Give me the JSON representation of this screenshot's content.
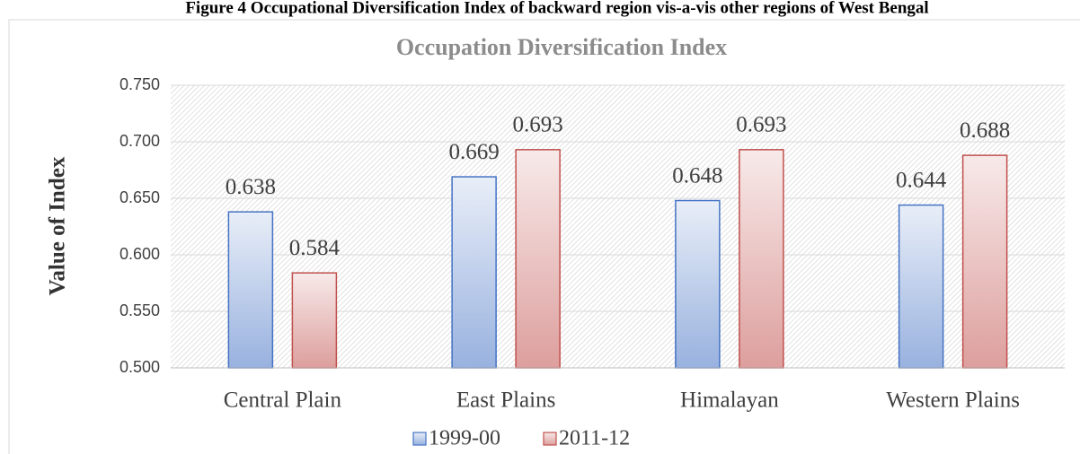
{
  "caption": "Figure 4 Occupational Diversification Index of backward region vis-a-vis other regions of West Bengal",
  "chart_data": {
    "type": "bar",
    "title": "Occupation Diversification Index",
    "y_label": "Value of Index",
    "categories": [
      "Central Plain",
      "East Plains",
      "Himalayan",
      "Western Plains"
    ],
    "series": [
      {
        "name": "1999-00",
        "color": "#4472c4",
        "values": [
          0.638,
          0.669,
          0.648,
          0.644
        ]
      },
      {
        "name": "2011-12",
        "color": "#c0504d",
        "values": [
          0.584,
          0.693,
          0.693,
          0.688
        ]
      }
    ],
    "ylim": [
      0.5,
      0.75
    ],
    "yticks": [
      {
        "value": 0.5,
        "label": "0.500"
      },
      {
        "value": 0.55,
        "label": "0.550"
      },
      {
        "value": 0.6,
        "label": "0.600"
      },
      {
        "value": 0.65,
        "label": "0.650"
      },
      {
        "value": 0.7,
        "label": "0.700"
      },
      {
        "value": 0.75,
        "label": "0.750"
      }
    ],
    "grid": true,
    "legend": "bottom"
  }
}
